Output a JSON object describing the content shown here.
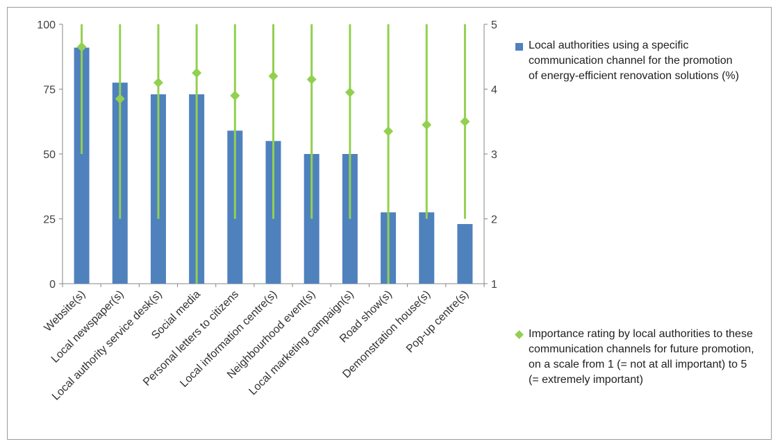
{
  "chart_data": {
    "type": "bar",
    "categories": [
      "Website(s)",
      "Local newspaper(s)",
      "Local authority service desk(s)",
      "Social media",
      "Personal letters to citizens",
      "Local information centre(s)",
      "Neighbourhood event(s)",
      "Local marketing campaign(s)",
      "Road show(s)",
      "Demonstration house(s)",
      "Pop-up centre(s)"
    ],
    "series": [
      {
        "name": "Local authorities using a specific communication channel for the promotion of energy-efficient renovation solutions (%)",
        "type": "bar",
        "axis": "left",
        "color": "#4f81bd",
        "values": [
          91,
          77.5,
          73,
          73,
          59,
          55,
          50,
          50,
          27.5,
          27.5,
          23
        ]
      },
      {
        "name": "Importance rating by local authorities to these communication channels for future promotion, on a scale from 1 (= not at all important) to 5 (= extremely important)",
        "type": "scatter-range",
        "axis": "right",
        "color": "#92d050",
        "values": [
          4.65,
          3.85,
          4.1,
          4.25,
          3.9,
          4.2,
          4.15,
          3.95,
          3.35,
          3.45,
          3.5
        ],
        "range_low": [
          3,
          2,
          2,
          1,
          2,
          2,
          2,
          2,
          1,
          2,
          2
        ],
        "range_high": [
          5,
          5,
          5,
          5,
          5,
          5,
          5,
          5,
          5,
          5,
          5
        ]
      }
    ],
    "y_left": {
      "ylim": [
        0,
        100
      ],
      "ticks": [
        "0",
        "25",
        "50",
        "75",
        "100"
      ]
    },
    "y_right": {
      "ylim": [
        1,
        5
      ],
      "ticks": [
        "1",
        "2",
        "3",
        "4",
        "5"
      ]
    },
    "grid": false,
    "legend": "right"
  }
}
